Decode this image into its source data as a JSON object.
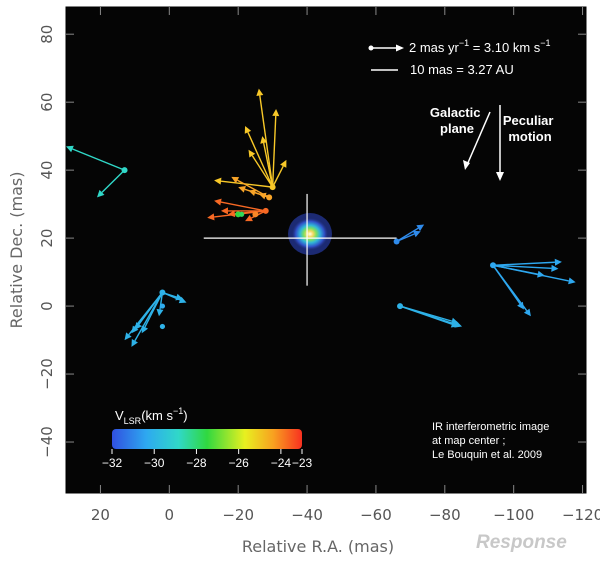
{
  "chart_data": {
    "type": "scatter",
    "xlabel": "Relative R.A. (mas)",
    "ylabel": "Relative Dec. (mas)",
    "xlim": [
      30,
      -121
    ],
    "ylim": [
      -55,
      88
    ],
    "x_ticks": [
      20,
      0,
      -20,
      -40,
      -60,
      -80,
      -100,
      -120
    ],
    "y_ticks": [
      80,
      60,
      40,
      20,
      0,
      -20,
      -40
    ],
    "x_tick_labels": [
      "20",
      "0",
      "−20",
      "−40",
      "−60",
      "−80",
      "−100",
      "−120"
    ],
    "y_tick_labels": [
      "80",
      "60",
      "40",
      "20",
      "0",
      "−20",
      "−40"
    ],
    "background": "#050505",
    "center_image": {
      "x": -40,
      "y": 20,
      "label": "IR interferometric image at map center ; Le Bouquin et al. 2009"
    },
    "crosshair": {
      "x_from": -10,
      "x_to": -66,
      "y_from": 6,
      "y_to": 33
    },
    "colorbar": {
      "label_main": "V",
      "label_sub": "LSR",
      "label_unit": "(km s",
      "label_exp": "−1",
      "label_close": ")",
      "tick_labels": [
        "−32",
        "−30",
        "−28",
        "−26",
        "−24",
        "−23"
      ],
      "tick_values": [
        -32,
        -30,
        -28,
        -26,
        -24,
        -23
      ],
      "range": [
        -32,
        -23
      ]
    },
    "scale_legend": {
      "line1_left": "2 mas yr",
      "line1_exp": "−1",
      "line1_mid": " = 3.10 km s",
      "line1_exp2": "−1",
      "line2": "10 mas = 3.27 AU"
    },
    "direction_labels": {
      "galactic_line1": "Galactic",
      "galactic_line2": "plane",
      "peculiar_line1": "Peculiar",
      "peculiar_line2": "motion"
    },
    "masers": [
      {
        "x": 13,
        "y": 40,
        "v": -29,
        "arrows": [
          [
            30,
            47
          ],
          [
            21,
            32
          ]
        ]
      },
      {
        "x": -30,
        "y": 35,
        "v": -24.3,
        "arrows": [
          [
            -26,
            64
          ],
          [
            -31,
            58
          ],
          [
            -22,
            53
          ],
          [
            -27,
            50
          ],
          [
            -23,
            46
          ],
          [
            -13,
            37
          ],
          [
            -34,
            43
          ]
        ]
      },
      {
        "x": -29,
        "y": 32,
        "v": -23.8,
        "arrows": [
          [
            -18,
            38
          ],
          [
            -20,
            35
          ],
          [
            -23,
            34
          ],
          [
            -26,
            33
          ]
        ]
      },
      {
        "x": -28,
        "y": 28,
        "v": -23.3,
        "arrows": [
          [
            -13,
            31
          ],
          [
            -15,
            28
          ],
          [
            -17,
            27
          ],
          [
            -11,
            26
          ],
          [
            -22,
            25
          ]
        ]
      },
      {
        "x": -20,
        "y": 27,
        "v": -27.5,
        "arrows": []
      },
      {
        "x": -25,
        "y": 27,
        "v": -23.5,
        "arrows": []
      },
      {
        "x": -66,
        "y": 19,
        "v": -31,
        "arrows": [
          [
            -73,
            22
          ],
          [
            -74,
            24
          ]
        ]
      },
      {
        "x": 2,
        "y": 4,
        "v": -30.2,
        "arrows": [
          [
            -4,
            2
          ],
          [
            -5,
            1
          ],
          [
            11,
            -8
          ],
          [
            13,
            -10
          ],
          [
            10,
            -7
          ],
          [
            8,
            -8
          ],
          [
            11,
            -12
          ],
          [
            3,
            -3
          ]
        ]
      },
      {
        "x": -67,
        "y": 0,
        "v": -30.2,
        "arrows": [
          [
            -84,
            -5
          ],
          [
            -84,
            -6
          ],
          [
            -85,
            -6
          ]
        ]
      },
      {
        "x": -94,
        "y": 12,
        "v": -30.5,
        "arrows": [
          [
            -114,
            13
          ],
          [
            -113,
            11
          ],
          [
            -118,
            7
          ],
          [
            -109,
            9
          ],
          [
            -105,
            -3
          ],
          [
            -103,
            -1
          ]
        ]
      }
    ],
    "extra_points": [
      {
        "x": 2,
        "y": -6,
        "v": -30.2
      },
      {
        "x": 2,
        "y": 0,
        "v": -30.4
      },
      {
        "x": -21,
        "y": 27,
        "v": -27.8
      }
    ]
  },
  "watermark": "Response"
}
